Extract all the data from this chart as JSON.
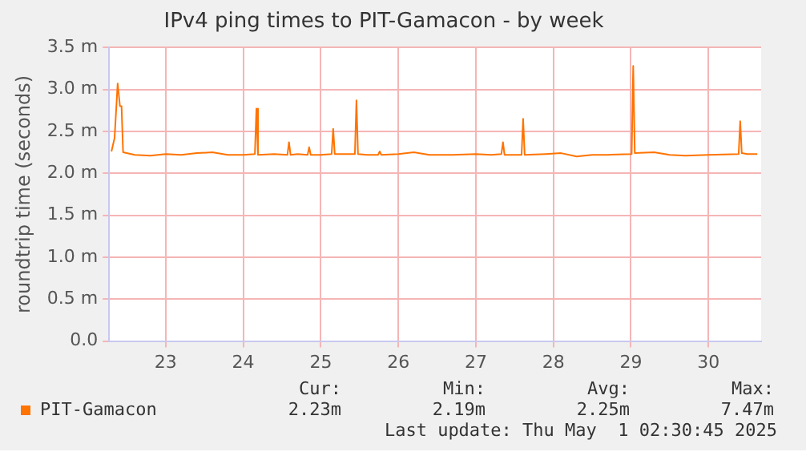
{
  "chart_data": {
    "type": "line",
    "title": "IPv4 ping times to PIT-Gamacon - by week",
    "ylabel": "roundtrip time (seconds)",
    "xlim": [
      22.77,
      31.18
    ],
    "xticks": [
      {
        "value": 23.5,
        "label": "23"
      },
      {
        "value": 24.5,
        "label": "24"
      },
      {
        "value": 25.5,
        "label": "25"
      },
      {
        "value": 26.5,
        "label": "26"
      },
      {
        "value": 27.5,
        "label": "27"
      },
      {
        "value": 28.5,
        "label": "28"
      },
      {
        "value": 29.5,
        "label": "29"
      },
      {
        "value": 30.5,
        "label": "30"
      }
    ],
    "ylim": [
      0,
      3.5
    ],
    "yticks": [
      {
        "value": 0,
        "label": "0.0"
      },
      {
        "value": 0.5,
        "label": "0.5 m"
      },
      {
        "value": 1,
        "label": "1.0 m"
      },
      {
        "value": 1.5,
        "label": "1.5 m"
      },
      {
        "value": 2,
        "label": "2.0 m"
      },
      {
        "value": 2.5,
        "label": "2.5 m"
      },
      {
        "value": 3,
        "label": "3.0 m"
      },
      {
        "value": 3.5,
        "label": "3.5 m"
      }
    ],
    "grid": true,
    "legend": "bottom",
    "marker": "none",
    "line_style": "solid",
    "x": [
      22.8,
      22.84,
      22.88,
      22.91,
      22.93,
      22.95,
      23.1,
      23.3,
      23.5,
      23.7,
      23.9,
      24.1,
      24.3,
      24.5,
      24.65,
      24.67,
      24.69,
      24.9,
      25.07,
      25.09,
      25.11,
      25.2,
      25.33,
      25.35,
      25.37,
      25.5,
      25.64,
      25.66,
      25.68,
      25.8,
      25.94,
      25.96,
      25.98,
      26.1,
      26.24,
      26.26,
      26.28,
      26.5,
      26.7,
      26.9,
      27.2,
      27.5,
      27.7,
      27.83,
      27.85,
      27.87,
      28.09,
      28.11,
      28.13,
      28.4,
      28.6,
      28.8,
      29.0,
      29.2,
      29.51,
      29.53,
      29.55,
      29.8,
      30.0,
      30.2,
      30.5,
      30.89,
      30.91,
      30.93,
      31.0,
      31.13
    ],
    "series": [
      {
        "name": "PIT-Gamacon",
        "color": "#ff7300",
        "values": [
          2.26,
          2.42,
          3.07,
          2.8,
          2.8,
          2.25,
          2.22,
          2.21,
          2.23,
          2.22,
          2.24,
          2.25,
          2.22,
          2.22,
          2.23,
          2.77,
          2.22,
          2.23,
          2.22,
          2.37,
          2.22,
          2.23,
          2.22,
          2.31,
          2.22,
          2.22,
          2.23,
          2.53,
          2.23,
          2.23,
          2.23,
          2.87,
          2.23,
          2.22,
          2.22,
          2.26,
          2.22,
          2.23,
          2.25,
          2.22,
          2.22,
          2.23,
          2.22,
          2.23,
          2.37,
          2.22,
          2.22,
          2.65,
          2.22,
          2.23,
          2.24,
          2.2,
          2.22,
          2.22,
          2.23,
          3.28,
          2.24,
          2.25,
          2.22,
          2.21,
          2.22,
          2.23,
          2.62,
          2.24,
          2.23,
          2.23
        ]
      }
    ],
    "annotations": [
      "Cur:",
      "Min:",
      "Avg:",
      "Max:",
      "2.23m",
      "2.19m",
      "2.25m",
      "7.47m",
      "Last update: Thu May  1 02:30:45 2025"
    ]
  }
}
